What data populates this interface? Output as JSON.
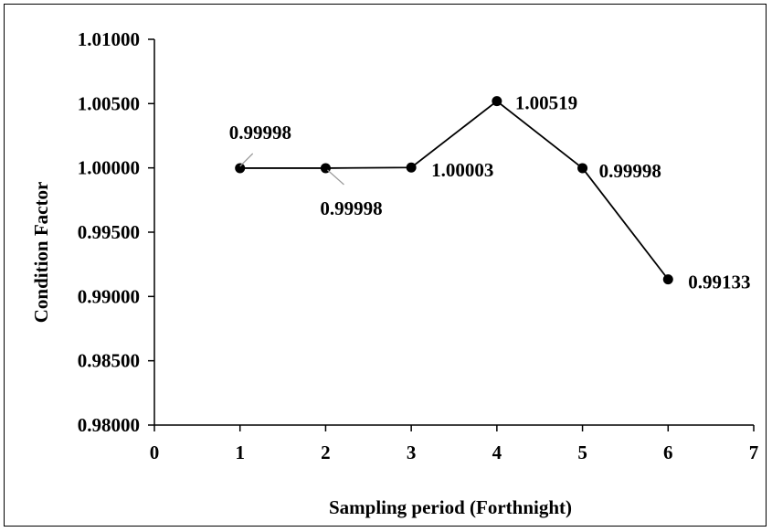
{
  "chart_data": {
    "type": "line",
    "title": "",
    "xlabel": "Sampling period (Forthnight)",
    "ylabel": "Condition Factor",
    "xlim": [
      0,
      7
    ],
    "ylim": [
      0.98,
      1.01
    ],
    "x_ticks": [
      0,
      1,
      2,
      3,
      4,
      5,
      6,
      7
    ],
    "y_ticks": [
      0.98,
      0.985,
      0.99,
      0.995,
      1.0,
      1.005,
      1.01
    ],
    "x_tick_labels": [
      "0",
      "1",
      "2",
      "3",
      "4",
      "5",
      "6",
      "7"
    ],
    "y_tick_labels": [
      "0.98000",
      "0.98500",
      "0.99000",
      "0.99500",
      "1.00000",
      "1.00500",
      "1.01000"
    ],
    "grid": false,
    "legend": "none",
    "line_color": "#000000",
    "marker": "filled-circle",
    "series": [
      {
        "x": [
          1,
          2,
          3,
          4,
          5,
          6
        ],
        "values": [
          0.99998,
          0.99998,
          1.00003,
          1.00519,
          0.99998,
          0.99133
        ],
        "labels": [
          "0.99998",
          "0.99998",
          "1.00003",
          "1.00519",
          "0.99998",
          "0.99133"
        ]
      }
    ]
  }
}
